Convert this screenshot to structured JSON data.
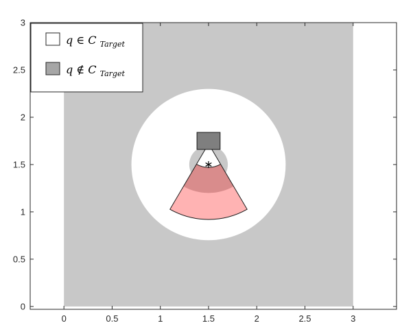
{
  "chart_data": {
    "type": "heatmap",
    "title": "",
    "xlabel": "",
    "ylabel": "",
    "xlim": [
      -0.35,
      3.45
    ],
    "ylim": [
      -0.03,
      3.0
    ],
    "x_ticks": [
      "0",
      "0.5",
      "1",
      "1.5",
      "2",
      "2.5",
      "3"
    ],
    "x_tick_values": [
      0,
      0.5,
      1,
      1.5,
      2,
      2.5,
      3
    ],
    "y_ticks": [
      "0",
      "0.5",
      "1",
      "1.5",
      "2",
      "2.5",
      "3"
    ],
    "y_tick_values": [
      0,
      0.5,
      1,
      1.5,
      2,
      2.5,
      3
    ],
    "grid": false,
    "legend": {
      "position": "top-left",
      "entries": [
        {
          "symbol": "q",
          "relation": "∈",
          "set": "C",
          "subscript": "Target",
          "color": "#ffffff"
        },
        {
          "symbol": "q",
          "relation": "∉",
          "set": "C",
          "subscript": "Target",
          "color": "#a6a6a6"
        }
      ]
    },
    "regions": {
      "not_in_target_domain": {
        "x": [
          0,
          3
        ],
        "y": [
          0,
          3
        ],
        "color": "#c8c8c8"
      },
      "in_target_annulus": {
        "center": [
          1.5,
          1.5
        ],
        "inner_radius": 0.2,
        "outer_radius": 0.8,
        "color": "#ffffff"
      }
    },
    "sensor": {
      "box_center": [
        1.5,
        1.75
      ],
      "box_size": [
        0.24,
        0.18
      ],
      "box_color": "#7f7f7f",
      "marker": "*",
      "marker_position": [
        1.5,
        1.5
      ],
      "apex": [
        1.5,
        1.72
      ],
      "fov_half_angle_deg": 30,
      "range_min": 0.25,
      "range_max": 0.8,
      "dark_band_outer": 0.52,
      "fov_color": "#ffb3b3",
      "overlap_color": "#d98c8c"
    }
  }
}
